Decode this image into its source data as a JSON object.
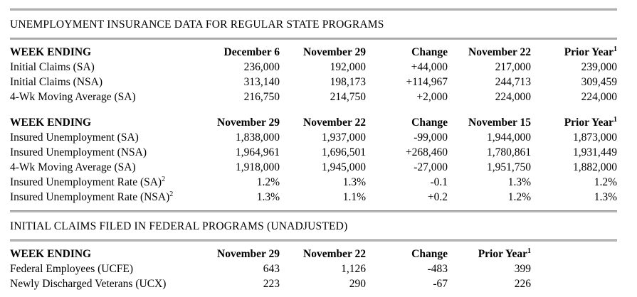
{
  "sections": [
    {
      "title": "UNEMPLOYMENT INSURANCE DATA FOR REGULAR STATE PROGRAMS"
    },
    {
      "title": "INITIAL CLAIMS FILED IN FEDERAL PROGRAMS (UNADJUSTED)"
    }
  ],
  "tables": [
    {
      "headers": [
        {
          "text": "WEEK ENDING",
          "sup": ""
        },
        {
          "text": "December 6",
          "sup": ""
        },
        {
          "text": "November 29",
          "sup": ""
        },
        {
          "text": "Change",
          "sup": ""
        },
        {
          "text": "November 22",
          "sup": ""
        },
        {
          "text": "Prior Year",
          "sup": "1"
        }
      ],
      "rows": [
        {
          "label": "Initial Claims (SA)",
          "label_sup": "",
          "values": [
            "236,000",
            "192,000",
            "+44,000",
            "217,000",
            "239,000"
          ]
        },
        {
          "label": "Initial Claims (NSA)",
          "label_sup": "",
          "values": [
            "313,140",
            "198,173",
            "+114,967",
            "244,713",
            "309,459"
          ]
        },
        {
          "label": "4-Wk Moving Average (SA)",
          "label_sup": "",
          "values": [
            "216,750",
            "214,750",
            "+2,000",
            "224,000",
            "224,000"
          ]
        }
      ]
    },
    {
      "headers": [
        {
          "text": "WEEK ENDING",
          "sup": ""
        },
        {
          "text": "November 29",
          "sup": ""
        },
        {
          "text": "November 22",
          "sup": ""
        },
        {
          "text": "Change",
          "sup": ""
        },
        {
          "text": "November 15",
          "sup": ""
        },
        {
          "text": "Prior Year",
          "sup": "1"
        }
      ],
      "rows": [
        {
          "label": "Insured Unemployment (SA)",
          "label_sup": "",
          "values": [
            "1,838,000",
            "1,937,000",
            "-99,000",
            "1,944,000",
            "1,873,000"
          ]
        },
        {
          "label": "Insured Unemployment (NSA)",
          "label_sup": "",
          "values": [
            "1,964,961",
            "1,696,501",
            "+268,460",
            "1,780,861",
            "1,931,449"
          ]
        },
        {
          "label": "4-Wk Moving Average (SA)",
          "label_sup": "",
          "values": [
            "1,918,000",
            "1,945,000",
            "-27,000",
            "1,951,750",
            "1,882,000"
          ]
        },
        {
          "label": "Insured Unemployment Rate (SA)",
          "label_sup": "2",
          "values": [
            "1.2%",
            "1.3%",
            "-0.1",
            "1.3%",
            "1.2%"
          ]
        },
        {
          "label": "Insured Unemployment Rate (NSA)",
          "label_sup": "2",
          "values": [
            "1.3%",
            "1.1%",
            "+0.2",
            "1.2%",
            "1.3%"
          ]
        }
      ]
    },
    {
      "headers": [
        {
          "text": "WEEK ENDING",
          "sup": ""
        },
        {
          "text": "November 29",
          "sup": ""
        },
        {
          "text": "November 22",
          "sup": ""
        },
        {
          "text": "Change",
          "sup": ""
        },
        {
          "text": "Prior Year",
          "sup": "1"
        }
      ],
      "rows": [
        {
          "label": "Federal Employees (UCFE)",
          "label_sup": "",
          "values": [
            "643",
            "1,126",
            "-483",
            "399"
          ]
        },
        {
          "label": "Newly Discharged Veterans (UCX)",
          "label_sup": "",
          "values": [
            "223",
            "290",
            "-67",
            "226"
          ]
        }
      ]
    }
  ]
}
